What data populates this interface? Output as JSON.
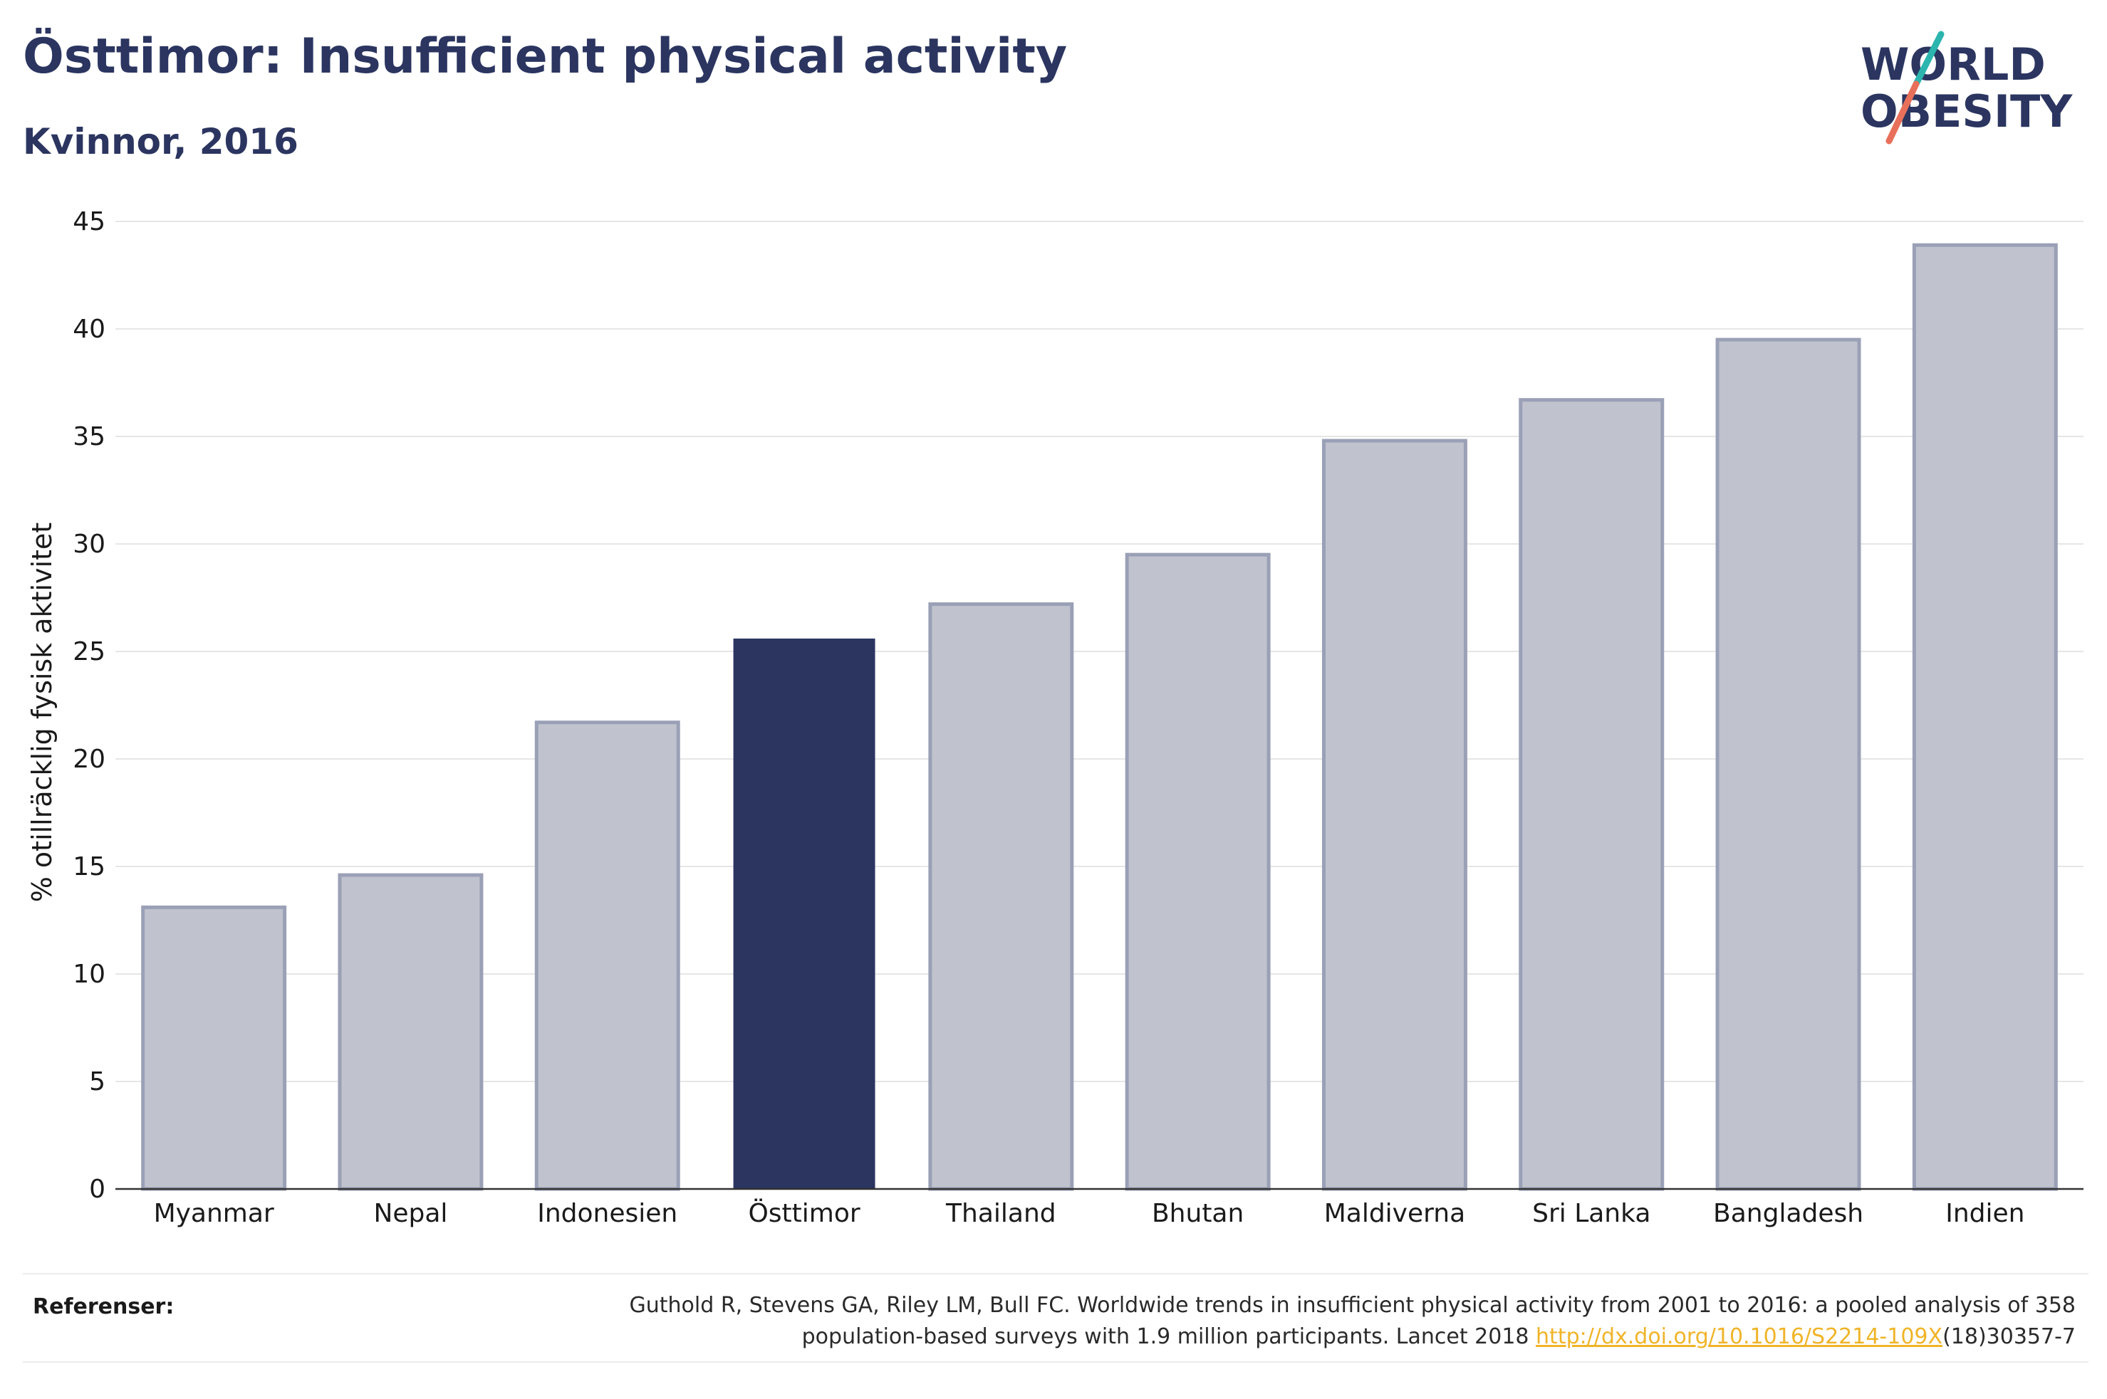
{
  "header": {
    "title": "Östtimor: Insufficient physical activity",
    "subtitle": "Kvinnor, 2016"
  },
  "logo": {
    "line1": "WORLD",
    "line2": "OBESITY",
    "slash_colors": [
      "#2bb5ae",
      "#e8705a"
    ]
  },
  "colors": {
    "highlight": "#2b3560",
    "bar": "#c0c3ce",
    "bar_stroke": "#9aa0b6",
    "grid": "#e6e6e6",
    "link": "#f0b429"
  },
  "chart_data": {
    "type": "bar",
    "title": "Östtimor: Insufficient physical activity",
    "subtitle": "Kvinnor, 2016",
    "xlabel": "",
    "ylabel": "% otillräcklig fysisk aktivitet",
    "ylim": [
      0,
      45
    ],
    "yticks": [
      0,
      5,
      10,
      15,
      20,
      25,
      30,
      35,
      40,
      45
    ],
    "grid": true,
    "categories": [
      "Myanmar",
      "Nepal",
      "Indonesien",
      "Östtimor",
      "Thailand",
      "Bhutan",
      "Maldiverna",
      "Sri Lanka",
      "Bangladesh",
      "Indien"
    ],
    "values": [
      13.1,
      14.6,
      21.7,
      25.6,
      27.2,
      29.5,
      34.8,
      36.7,
      39.5,
      43.9
    ],
    "highlight": "Östtimor"
  },
  "references": {
    "label": "Referenser:",
    "text_line1": "Guthold R, Stevens GA, Riley LM, Bull FC. Worldwide trends in insufficient physical activity from 2001 to 2016: a pooled analysis of 358",
    "text_line2_prefix": "population-based surveys with 1.9 million participants. Lancet 2018 ",
    "link_text": "http://dx.doi.org/10.1016/S2214-109X",
    "text_line2_suffix": "(18)30357-7"
  }
}
